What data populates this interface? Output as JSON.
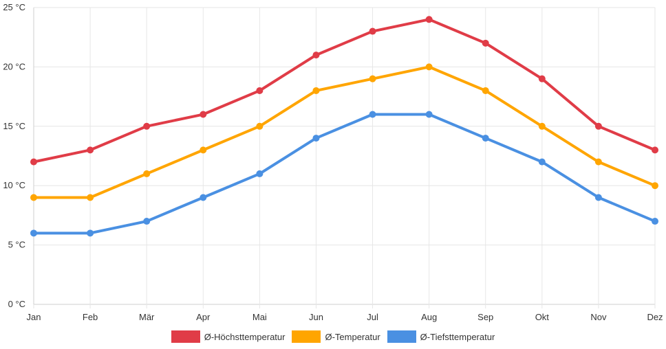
{
  "chart_data": {
    "type": "line",
    "categories": [
      "Jan",
      "Feb",
      "Mär",
      "Apr",
      "Mai",
      "Jun",
      "Jul",
      "Aug",
      "Sep",
      "Okt",
      "Nov",
      "Dez"
    ],
    "series": [
      {
        "name": "Ø-Höchsttemperatur",
        "color": "#e03c47",
        "values": [
          12,
          13,
          15,
          16,
          18,
          21,
          23,
          24,
          22,
          19,
          15,
          13
        ]
      },
      {
        "name": "Ø-Temperatur",
        "color": "#ffa500",
        "values": [
          9,
          9,
          11,
          13,
          15,
          18,
          19,
          20,
          18,
          15,
          12,
          10
        ]
      },
      {
        "name": "Ø-Tiefsttemperatur",
        "color": "#4a90e2",
        "values": [
          6,
          6,
          7,
          9,
          11,
          14,
          16,
          16,
          14,
          12,
          9,
          7
        ]
      }
    ],
    "yticks": [
      "0 °C",
      "5 °C",
      "10 °C",
      "15 °C",
      "20 °C",
      "25 °C"
    ],
    "ylim": [
      0,
      25
    ],
    "grid": true,
    "legend_position": "bottom"
  }
}
